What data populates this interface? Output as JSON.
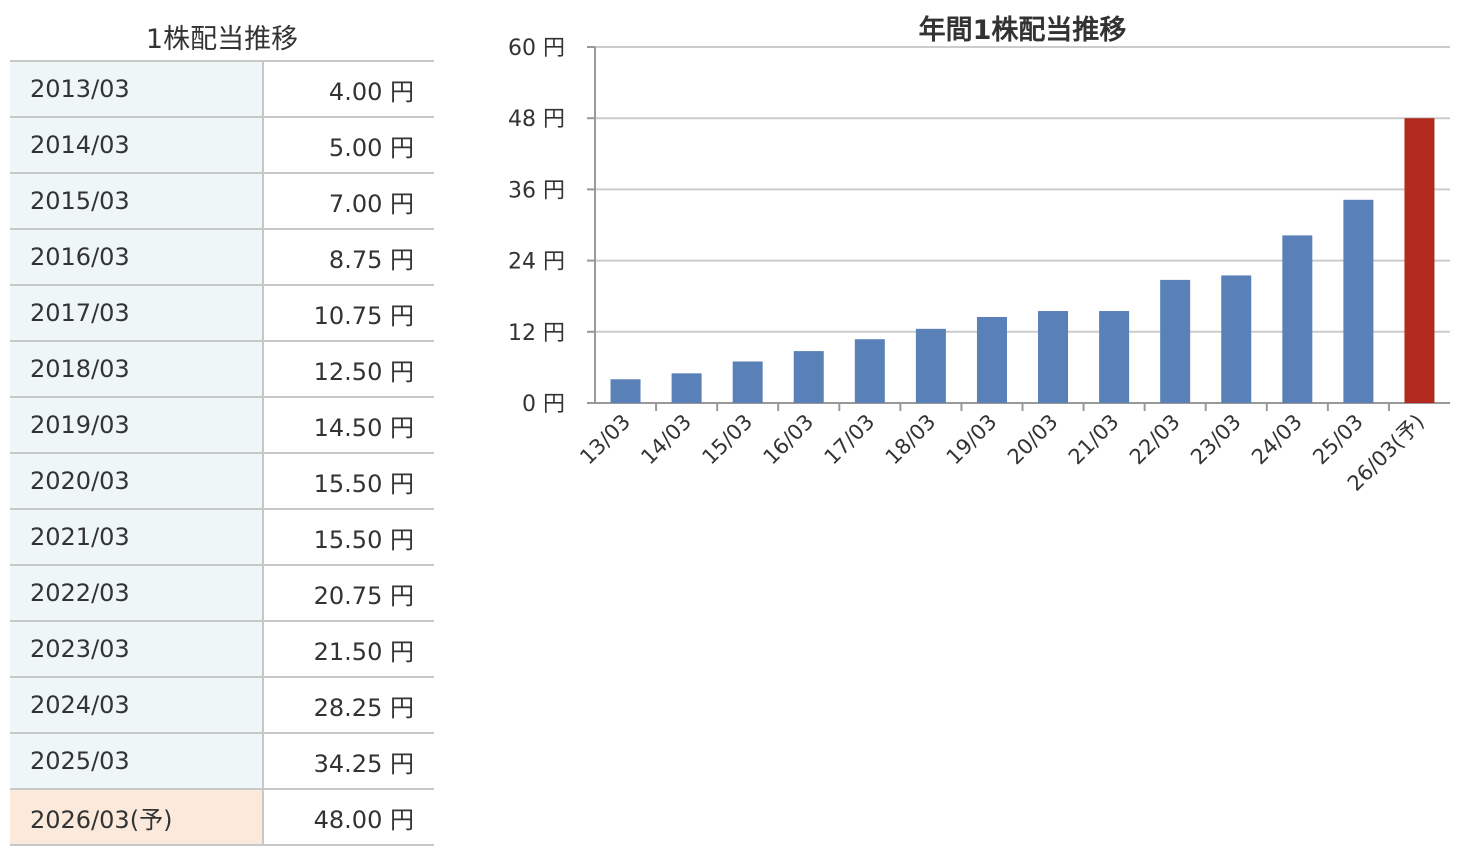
{
  "table": {
    "title": "1株配当推移",
    "unit": "円",
    "rows": [
      {
        "period": "2013/03",
        "amount": "4.00"
      },
      {
        "period": "2014/03",
        "amount": "5.00"
      },
      {
        "period": "2015/03",
        "amount": "7.00"
      },
      {
        "period": "2016/03",
        "amount": "8.75"
      },
      {
        "period": "2017/03",
        "amount": "10.75"
      },
      {
        "period": "2018/03",
        "amount": "12.50"
      },
      {
        "period": "2019/03",
        "amount": "14.50"
      },
      {
        "period": "2020/03",
        "amount": "15.50"
      },
      {
        "period": "2021/03",
        "amount": "15.50"
      },
      {
        "period": "2022/03",
        "amount": "20.75"
      },
      {
        "period": "2023/03",
        "amount": "21.50"
      },
      {
        "period": "2024/03",
        "amount": "28.25"
      },
      {
        "period": "2025/03",
        "amount": "34.25"
      },
      {
        "period": "2026/03(予)",
        "amount": "48.00",
        "forecast": true
      }
    ]
  },
  "chart_data": {
    "type": "bar",
    "title": "年間1株配当推移",
    "categories": [
      "13/03",
      "14/03",
      "15/03",
      "16/03",
      "17/03",
      "18/03",
      "19/03",
      "20/03",
      "21/03",
      "22/03",
      "23/03",
      "24/03",
      "25/03",
      "26/03(予)"
    ],
    "values": [
      4.0,
      5.0,
      7.0,
      8.75,
      10.75,
      12.5,
      14.5,
      15.5,
      15.5,
      20.75,
      21.5,
      28.25,
      34.25,
      48.0
    ],
    "ylim": [
      0,
      60
    ],
    "yticks": [
      0,
      12,
      24,
      36,
      48,
      60
    ],
    "y_unit": "円",
    "grid": true,
    "legend": "none",
    "colors": {
      "actual": "#5a80b8",
      "forecast": "#b22a1e",
      "grid": "#cccccc",
      "axis": "#999999"
    },
    "forecast_index": 13
  }
}
